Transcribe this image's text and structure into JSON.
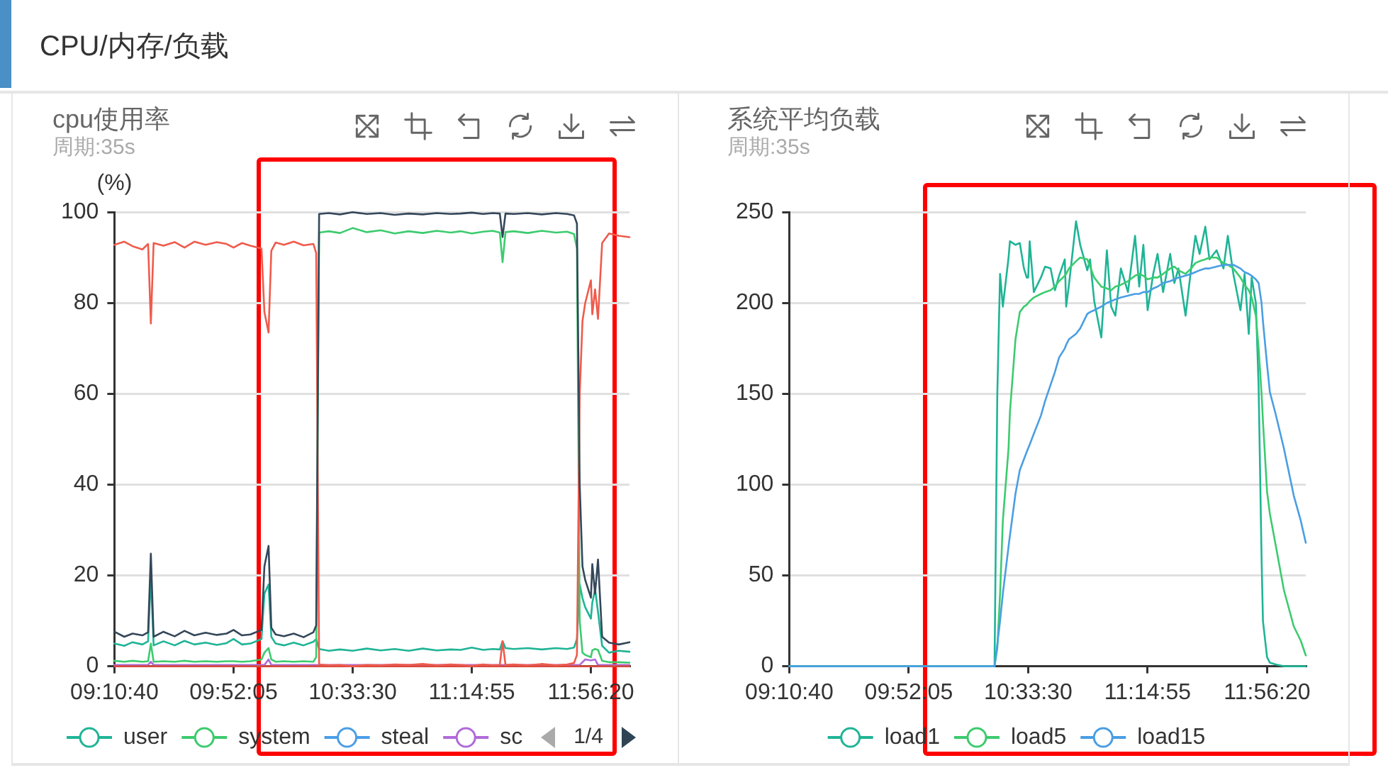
{
  "chart_data": [
    {
      "type": "line",
      "title": "cpu使用率",
      "subtitle": "周期:35s",
      "ylabel": "(%)",
      "annotations": [
        "CPU/内存/负载",
        "1/4"
      ],
      "x": [
        9.1778,
        9.235,
        9.283,
        9.34,
        9.373,
        9.389,
        9.405,
        9.462,
        9.527,
        9.584,
        9.641,
        9.706,
        9.771,
        9.828,
        9.8681,
        9.917,
        9.966,
        10.03,
        10.047,
        10.071,
        10.087,
        10.112,
        10.16,
        10.217,
        10.274,
        10.331,
        10.347,
        10.364,
        10.42,
        10.485,
        10.5583,
        10.64,
        10.721,
        10.802,
        10.883,
        10.964,
        11.046,
        11.127,
        11.184,
        11.2486,
        11.314,
        11.37,
        11.411,
        11.427,
        11.444,
        11.492,
        11.573,
        11.655,
        11.736,
        11.801,
        11.841,
        11.858,
        11.874,
        11.89,
        11.906,
        11.9389,
        11.947,
        11.963,
        11.98,
        12.004,
        12.044,
        12.101,
        12.1625
      ],
      "xlim": [
        9.1778,
        12.1625
      ],
      "xticks": [
        {
          "value": 9.1778,
          "label": "09:10:40"
        },
        {
          "value": 9.8681,
          "label": "09:52:05"
        },
        {
          "value": 10.5583,
          "label": "10:33:30"
        },
        {
          "value": 11.2486,
          "label": "11:14:55"
        },
        {
          "value": 11.9389,
          "label": "11:56:20"
        }
      ],
      "ylim": [
        0,
        100
      ],
      "yticks": [
        0,
        20,
        40,
        60,
        80,
        100
      ],
      "grid": "y",
      "legend": "bottom",
      "series": [
        {
          "name": "user",
          "color": "#1fb496",
          "values": [
            5.0,
            4.5,
            5.3,
            4.8,
            5.5,
            20.0,
            4.6,
            5.5,
            4.6,
            5.6,
            4.8,
            5.2,
            4.7,
            5.1,
            6.0,
            4.8,
            5.0,
            6.0,
            16.0,
            18.0,
            6.5,
            5.0,
            4.6,
            5.2,
            4.6,
            5.4,
            6.0,
            3.8,
            3.4,
            3.7,
            3.4,
            3.9,
            3.5,
            3.8,
            3.4,
            3.9,
            3.5,
            3.7,
            3.6,
            4.1,
            3.6,
            3.8,
            3.7,
            5.5,
            4.0,
            3.8,
            4.0,
            3.7,
            4.0,
            3.8,
            4.1,
            6.0,
            18.0,
            15.0,
            13.0,
            10.5,
            14.0,
            17.0,
            12.0,
            4.5,
            3.0,
            3.4,
            3.2
          ]
        },
        {
          "name": "system",
          "color": "#3ccb6e",
          "values": [
            1.2,
            1.0,
            1.2,
            1.0,
            1.1,
            5.0,
            1.0,
            1.1,
            1.0,
            1.2,
            1.0,
            1.1,
            1.0,
            1.1,
            1.1,
            1.0,
            1.1,
            1.5,
            3.0,
            4.0,
            1.5,
            1.0,
            1.1,
            1.0,
            1.1,
            1.0,
            2.0,
            95.5,
            95.8,
            95.4,
            96.5,
            95.6,
            96.0,
            95.3,
            95.8,
            95.4,
            95.9,
            95.5,
            95.8,
            95.3,
            95.7,
            95.9,
            95.5,
            89.0,
            95.6,
            95.8,
            95.4,
            95.9,
            95.5,
            95.7,
            95.2,
            92.0,
            10.0,
            3.0,
            2.5,
            2.0,
            3.5,
            3.8,
            3.6,
            1.2,
            0.9,
            0.9,
            0.8
          ]
        },
        {
          "name": "steal",
          "color": "#4a9ee6",
          "values": [
            null,
            null,
            null,
            null,
            null,
            null,
            null,
            null,
            null,
            null,
            null,
            null,
            null,
            null,
            null,
            null,
            null,
            null,
            null,
            null,
            null,
            null,
            null,
            null,
            null,
            null,
            null,
            null,
            null,
            null,
            null,
            null,
            null,
            null,
            null,
            null,
            null,
            null,
            null,
            null,
            null,
            null,
            null,
            null,
            null,
            null,
            null,
            null,
            null,
            null,
            null,
            null,
            null,
            null,
            null,
            null,
            null,
            null,
            null,
            null,
            null,
            null,
            null
          ]
        },
        {
          "name": "sc",
          "color": "#b06ad9",
          "x": [
            9.1778,
            9.373,
            9.389,
            9.405,
            10.047,
            10.071,
            10.087,
            11.874,
            11.906,
            11.9389,
            11.963,
            11.98,
            12.1625
          ],
          "values": [
            0.3,
            0.3,
            1.0,
            0.3,
            0.3,
            1.5,
            0.3,
            0.3,
            1.5,
            1.3,
            1.5,
            0.3,
            0.3
          ]
        },
        {
          "color": "#d64b3c",
          "x": [
            9.1778,
            9.8681,
            10.5583,
            11.2486,
            11.9389,
            12.1625
          ],
          "values": [
            0,
            0,
            0,
            0,
            0,
            0
          ]
        },
        {
          "color": "#ef5b4c",
          "values": [
            92.8,
            93.5,
            92.5,
            91.8,
            93.0,
            75.5,
            93.2,
            92.6,
            93.4,
            92.2,
            93.5,
            92.8,
            93.4,
            93.0,
            92.2,
            93.2,
            92.6,
            92.0,
            78.0,
            73.5,
            91.5,
            93.3,
            92.8,
            93.5,
            92.7,
            93.0,
            91.0,
            0.4,
            0.2,
            0.3,
            0,
            0.3,
            0.2,
            0.4,
            0.3,
            0.5,
            0.2,
            0.4,
            0.3,
            0.1,
            0.4,
            0.2,
            0.3,
            5.5,
            0.3,
            0.4,
            0.2,
            0.5,
            0.2,
            0.4,
            0.7,
            2.5,
            60.0,
            76.0,
            80.0,
            85.0,
            77.5,
            83.0,
            76.5,
            93.2,
            95.3,
            94.8,
            94.5
          ]
        },
        {
          "color": "#34475a",
          "values": [
            7.6,
            6.5,
            7.2,
            6.8,
            7.5,
            24.8,
            6.5,
            7.6,
            6.6,
            7.8,
            6.8,
            7.4,
            6.9,
            7.2,
            8.0,
            6.8,
            7.0,
            8.0,
            22.0,
            26.5,
            8.5,
            7.0,
            6.6,
            7.2,
            6.4,
            7.5,
            9.0,
            99.6,
            99.8,
            99.5,
            100,
            99.6,
            99.8,
            99.4,
            99.7,
            99.5,
            99.8,
            99.6,
            99.7,
            99.9,
            99.6,
            99.8,
            99.7,
            94.5,
            99.7,
            99.6,
            99.8,
            99.5,
            99.8,
            99.6,
            99.3,
            97.5,
            40.0,
            22.0,
            19.0,
            15.1,
            22.5,
            16.0,
            23.5,
            6.5,
            5.2,
            4.8,
            5.3
          ]
        }
      ]
    },
    {
      "type": "line",
      "title": "系统平均负载",
      "subtitle": "周期:35s",
      "x": [
        9.1778,
        9.8681,
        10.364,
        10.38,
        10.396,
        10.412,
        10.445,
        10.453,
        10.485,
        10.51,
        10.534,
        10.55,
        10.5583,
        10.567,
        10.591,
        10.632,
        10.656,
        10.688,
        10.713,
        10.737,
        10.77,
        10.778,
        10.794,
        10.835,
        10.859,
        10.9,
        10.916,
        10.94,
        10.981,
        11.013,
        11.038,
        11.062,
        11.094,
        11.135,
        11.176,
        11.2,
        11.224,
        11.2486,
        11.281,
        11.306,
        11.338,
        11.379,
        11.403,
        11.427,
        11.468,
        11.5,
        11.525,
        11.549,
        11.582,
        11.606,
        11.647,
        11.687,
        11.712,
        11.744,
        11.785,
        11.809,
        11.833,
        11.85,
        11.874,
        11.89,
        11.907,
        11.915,
        11.9389,
        11.955,
        11.988,
        12.036,
        12.093,
        12.134,
        12.1625
      ],
      "xlim": [
        9.1778,
        12.1625
      ],
      "xticks": [
        {
          "value": 9.1778,
          "label": "09:10:40"
        },
        {
          "value": 9.8681,
          "label": "09:52:05"
        },
        {
          "value": 10.5583,
          "label": "10:33:30"
        },
        {
          "value": 11.2486,
          "label": "11:14:55"
        },
        {
          "value": 11.9389,
          "label": "11:56:20"
        }
      ],
      "ylim": [
        0,
        250
      ],
      "yticks": [
        0,
        50,
        100,
        150,
        200,
        250
      ],
      "grid": "y",
      "legend": "bottom",
      "series": [
        {
          "name": "load1",
          "color": "#1fb496",
          "values": [
            0,
            0,
            0,
            150,
            216,
            198,
            225,
            234,
            232,
            233,
            219,
            214,
            214,
            234,
            206,
            214,
            220,
            219,
            207,
            215,
            224,
            198,
            210,
            245,
            232,
            218,
            224,
            201,
            181,
            229,
            198,
            193,
            219,
            206,
            237,
            209,
            232,
            196,
            216,
            227,
            206,
            227,
            211,
            219,
            193,
            219,
            237,
            227,
            242,
            224,
            229,
            219,
            237,
            216,
            196,
            216,
            183,
            214,
            200,
            154,
            60,
            25,
            5,
            2,
            1,
            0,
            0,
            0,
            0
          ]
        },
        {
          "name": "load5",
          "color": "#3ccb6e",
          "values": [
            0,
            0,
            0,
            10,
            40,
            80,
            120,
            140,
            180,
            195,
            198,
            199,
            200,
            201,
            203,
            205,
            206,
            207,
            209,
            212,
            215,
            216,
            219,
            223,
            225,
            224,
            220,
            214,
            209,
            208,
            207,
            209,
            210,
            212,
            215,
            216,
            215,
            213,
            214,
            214,
            216,
            219,
            220,
            218,
            216,
            219,
            222,
            223,
            224,
            225,
            225,
            222,
            221,
            219,
            214,
            210,
            207,
            203,
            193,
            175,
            150,
            135,
            96,
            84,
            67,
            42,
            22,
            14,
            6
          ]
        },
        {
          "name": "load15",
          "color": "#4a9ee3",
          "values": [
            0,
            0,
            0,
            12,
            25,
            40,
            66,
            72,
            95,
            108,
            114,
            118,
            120,
            122,
            128,
            138,
            146,
            155,
            162,
            170,
            175,
            177,
            180,
            183,
            186,
            194,
            195,
            196,
            198,
            200,
            201,
            202,
            203,
            204,
            205,
            205,
            206,
            206,
            208,
            209,
            211,
            212,
            213,
            214,
            215,
            216,
            217,
            218,
            219,
            219,
            220,
            221,
            221,
            221,
            219,
            217,
            216,
            215,
            213,
            211,
            200,
            190,
            166,
            151,
            139,
            120,
            94,
            80,
            68
          ]
        }
      ]
    }
  ]
}
